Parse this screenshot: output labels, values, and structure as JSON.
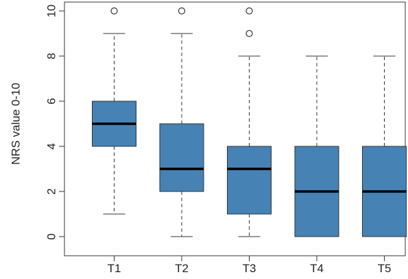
{
  "chart_data": {
    "type": "boxplot",
    "ylabel": "NRS value 0-10",
    "xlabel": "",
    "title": "",
    "ylim": [
      0,
      10
    ],
    "yticks": [
      0,
      2,
      4,
      6,
      8,
      10
    ],
    "categories": [
      "T1",
      "T2",
      "T3",
      "T4",
      "T5"
    ],
    "box_color": "#4682b4",
    "boxes": [
      {
        "label": "T1",
        "whisker_low": 1,
        "q1": 4,
        "median": 5,
        "q3": 6,
        "whisker_high": 9,
        "outliers": [
          10
        ]
      },
      {
        "label": "T2",
        "whisker_low": 0,
        "q1": 2,
        "median": 3,
        "q3": 5,
        "whisker_high": 9,
        "outliers": [
          10
        ]
      },
      {
        "label": "T3",
        "whisker_low": 0,
        "q1": 1,
        "median": 3,
        "q3": 4,
        "whisker_high": 8,
        "outliers": [
          9,
          10
        ]
      },
      {
        "label": "T4",
        "whisker_low": 0,
        "q1": 0,
        "median": 2,
        "q3": 4,
        "whisker_high": 8,
        "outliers": []
      },
      {
        "label": "T5",
        "whisker_low": 0,
        "q1": 0,
        "median": 2,
        "q3": 4,
        "whisker_high": 8,
        "outliers": []
      }
    ]
  }
}
